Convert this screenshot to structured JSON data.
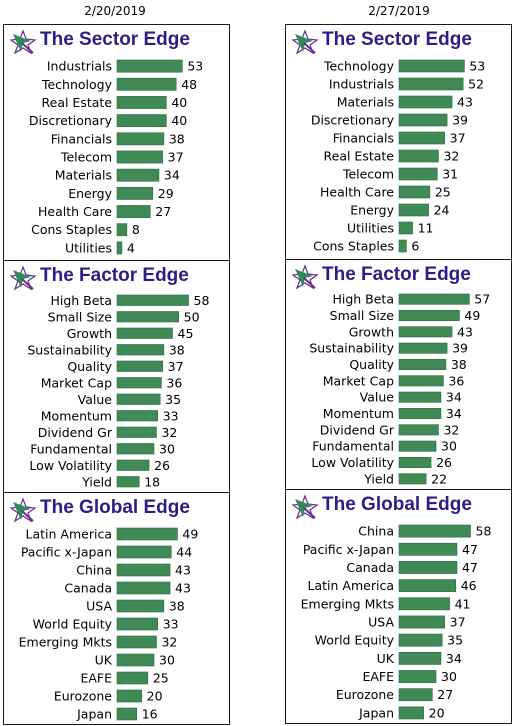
{
  "colors": {
    "bar": "#3f8a55",
    "bar_dark": "#2b6b3d",
    "title": "#2a1f86",
    "logo_green": "#2e8b57",
    "logo_purple": "#6b2c91"
  },
  "columns": [
    {
      "date": "2/20/2019",
      "panels": [
        {
          "title": "The Sector Edge",
          "logo": "arrow-logo-icon",
          "chart_data": {
            "type": "bar",
            "orientation": "horizontal",
            "xlim": [
              0,
              60
            ],
            "categories": [
              "Industrials",
              "Technology",
              "Real Estate",
              "Discretionary",
              "Financials",
              "Telecom",
              "Materials",
              "Energy",
              "Health Care",
              "Cons Staples",
              "Utilities"
            ],
            "values": [
              53,
              48,
              40,
              40,
              38,
              37,
              34,
              29,
              27,
              8,
              4
            ]
          }
        },
        {
          "title": "The Factor Edge",
          "logo": "arrow-logo-icon",
          "chart_data": {
            "type": "bar",
            "orientation": "horizontal",
            "xlim": [
              0,
              60
            ],
            "categories": [
              "High Beta",
              "Small Size",
              "Growth",
              "Sustainability",
              "Quality",
              "Market Cap",
              "Value",
              "Momentum",
              "Dividend Gr",
              "Fundamental",
              "Low Volatility",
              "Yield"
            ],
            "values": [
              58,
              50,
              45,
              38,
              37,
              36,
              35,
              33,
              32,
              30,
              26,
              18
            ]
          }
        },
        {
          "title": "The Global Edge",
          "logo": "arrow-logo-icon",
          "chart_data": {
            "type": "bar",
            "orientation": "horizontal",
            "xlim": [
              0,
              60
            ],
            "categories": [
              "Latin America",
              "Pacific x-Japan",
              "China",
              "Canada",
              "USA",
              "World Equity",
              "Emerging Mkts",
              "UK",
              "EAFE",
              "Eurozone",
              "Japan"
            ],
            "values": [
              49,
              44,
              43,
              43,
              38,
              33,
              32,
              30,
              25,
              20,
              16
            ]
          }
        }
      ]
    },
    {
      "date": "2/27/2019",
      "panels": [
        {
          "title": "The Sector Edge",
          "logo": "arrow-logo-icon",
          "chart_data": {
            "type": "bar",
            "orientation": "horizontal",
            "xlim": [
              0,
              60
            ],
            "categories": [
              "Technology",
              "Industrials",
              "Materials",
              "Discretionary",
              "Financials",
              "Real Estate",
              "Telecom",
              "Health Care",
              "Energy",
              "Utilities",
              "Cons Staples"
            ],
            "values": [
              53,
              52,
              43,
              39,
              37,
              32,
              31,
              25,
              24,
              11,
              6
            ]
          }
        },
        {
          "title": "The Factor Edge",
          "logo": "arrow-logo-icon",
          "chart_data": {
            "type": "bar",
            "orientation": "horizontal",
            "xlim": [
              0,
              60
            ],
            "categories": [
              "High Beta",
              "Small Size",
              "Growth",
              "Sustainability",
              "Quality",
              "Market Cap",
              "Value",
              "Momentum",
              "Dividend Gr",
              "Fundamental",
              "Low Volatility",
              "Yield"
            ],
            "values": [
              57,
              49,
              43,
              39,
              38,
              36,
              34,
              34,
              32,
              30,
              26,
              22
            ]
          }
        },
        {
          "title": "The Global Edge",
          "logo": "arrow-logo-icon",
          "chart_data": {
            "type": "bar",
            "orientation": "horizontal",
            "xlim": [
              0,
              60
            ],
            "categories": [
              "China",
              "Pacific x-Japan",
              "Canada",
              "Latin America",
              "Emerging Mkts",
              "USA",
              "World Equity",
              "UK",
              "EAFE",
              "Eurozone",
              "Japan"
            ],
            "values": [
              58,
              47,
              47,
              46,
              41,
              37,
              35,
              34,
              30,
              27,
              20
            ]
          }
        }
      ]
    }
  ]
}
